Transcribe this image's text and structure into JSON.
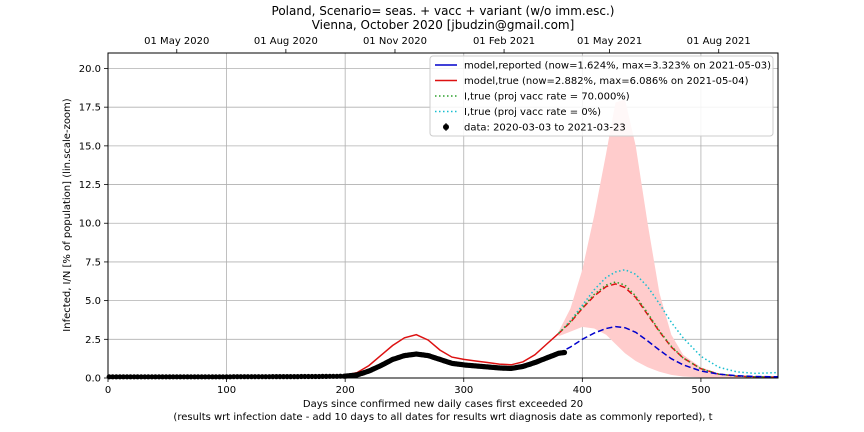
{
  "chart_data": {
    "type": "line",
    "title": "Poland, Scenario= seas. + vacc + variant (w/o imm.esc.)",
    "subtitle": "Vienna, October 2020 [jbudzin@gmail.com]",
    "xlabel": "Days since confirmed new daily cases first exceeded 20",
    "xlabel_note": "(results wrt infection date - add 10 days to all dates for results wrt diagnosis date as commonly reported), t",
    "ylabel": "Infected, I/N [% of population] (lin.scale-zoom)",
    "xlim": [
      0,
      565
    ],
    "ylim": [
      0,
      21
    ],
    "grid": true,
    "legend_position": "top-right",
    "x_ticks": [
      "0",
      "100",
      "200",
      "300",
      "400",
      "500"
    ],
    "x_tick_values": [
      0,
      100,
      200,
      300,
      400,
      500
    ],
    "y_ticks": [
      "0.0",
      "2.5",
      "5.0",
      "7.5",
      "10.0",
      "12.5",
      "15.0",
      "17.5",
      "20.0"
    ],
    "y_tick_values": [
      0,
      2.5,
      5,
      7.5,
      10,
      12.5,
      15,
      17.5,
      20
    ],
    "top_axis_ticks": [
      {
        "label": "01 May 2020",
        "x": 58
      },
      {
        "label": "01 Aug 2020",
        "x": 150
      },
      {
        "label": "01 Nov 2020",
        "x": 242
      },
      {
        "label": "01 Feb 2021",
        "x": 334
      },
      {
        "label": "01 May 2021",
        "x": 423
      },
      {
        "label": "01 Aug 2021",
        "x": 515
      }
    ],
    "legend": [
      {
        "label": "model,reported (now=1.624%, max=3.323% on 2021-05-03)",
        "color": "#0000cc",
        "style": "solid"
      },
      {
        "label": "model,true (now=2.882%, max=6.086% on 2021-05-04)",
        "color": "#dd1111",
        "style": "solid"
      },
      {
        "label": "I,true (proj vacc rate = 70.000%)",
        "color": "#2ca02c",
        "style": "dotted"
      },
      {
        "label": "I,true (proj vacc rate = 0%)",
        "color": "#17becf",
        "style": "dotted"
      },
      {
        "label": "data: 2020-03-03 to 2021-03-23",
        "color": "#000000",
        "style": "marker"
      }
    ],
    "series": [
      {
        "key": "reported",
        "color": "#0000cc",
        "x": [
          0,
          50,
          100,
          150,
          180,
          200,
          210,
          220,
          230,
          240,
          250,
          260,
          270,
          280,
          290,
          300,
          310,
          320,
          330,
          340,
          350,
          360,
          370,
          380
        ],
        "y": [
          0.08,
          0.08,
          0.08,
          0.09,
          0.1,
          0.12,
          0.2,
          0.45,
          0.8,
          1.2,
          1.45,
          1.55,
          1.45,
          1.2,
          0.95,
          0.85,
          0.78,
          0.72,
          0.65,
          0.62,
          0.75,
          1.0,
          1.3,
          1.6
        ]
      },
      {
        "key": "reported_projection",
        "color": "#0000cc",
        "dashed": true,
        "x": [
          380,
          390,
          400,
          410,
          420,
          428,
          436,
          445,
          455,
          465,
          475,
          485,
          500,
          515,
          530,
          545,
          565
        ],
        "y": [
          1.6,
          2.0,
          2.5,
          2.9,
          3.2,
          3.32,
          3.25,
          2.95,
          2.4,
          1.8,
          1.25,
          0.85,
          0.45,
          0.25,
          0.15,
          0.1,
          0.08
        ]
      },
      {
        "key": "true",
        "color": "#dd1111",
        "x": [
          0,
          50,
          100,
          150,
          180,
          200,
          210,
          220,
          230,
          240,
          250,
          260,
          270,
          280,
          290,
          300,
          310,
          320,
          330,
          340,
          350,
          360,
          370,
          380
        ],
        "y": [
          0.1,
          0.1,
          0.1,
          0.12,
          0.14,
          0.18,
          0.35,
          0.8,
          1.45,
          2.1,
          2.6,
          2.8,
          2.45,
          1.8,
          1.35,
          1.2,
          1.1,
          1.0,
          0.9,
          0.85,
          1.05,
          1.5,
          2.2,
          2.88
        ]
      },
      {
        "key": "true_projection",
        "color": "#dd1111",
        "dashed": true,
        "x": [
          380,
          390,
          400,
          410,
          420,
          428,
          436,
          445,
          455,
          465,
          475,
          485,
          500,
          515,
          530,
          545,
          565
        ],
        "y": [
          2.88,
          3.6,
          4.5,
          5.3,
          5.9,
          6.08,
          5.85,
          5.2,
          4.1,
          3.0,
          2.0,
          1.3,
          0.6,
          0.25,
          0.12,
          0.08,
          0.06
        ]
      },
      {
        "key": "vacc70",
        "color": "#2ca02c",
        "dotted": true,
        "x": [
          380,
          390,
          400,
          410,
          420,
          428,
          436,
          445,
          455,
          465,
          475,
          485,
          500,
          515,
          530,
          545,
          565
        ],
        "y": [
          2.88,
          3.65,
          4.55,
          5.4,
          6.0,
          6.2,
          6.0,
          5.3,
          4.2,
          3.05,
          2.05,
          1.3,
          0.6,
          0.25,
          0.12,
          0.08,
          0.06
        ]
      },
      {
        "key": "vacc0",
        "color": "#17becf",
        "dotted": true,
        "x": [
          380,
          390,
          400,
          410,
          420,
          428,
          436,
          445,
          455,
          465,
          475,
          485,
          500,
          515,
          530,
          545,
          565
        ],
        "y": [
          2.88,
          3.7,
          4.7,
          5.7,
          6.5,
          6.85,
          7.0,
          6.7,
          5.9,
          4.8,
          3.6,
          2.6,
          1.4,
          0.7,
          0.4,
          0.3,
          0.35
        ]
      }
    ],
    "uncertainty_band": {
      "color": "#ffcccc",
      "x": [
        380,
        390,
        400,
        410,
        420,
        428,
        436,
        445,
        455,
        465,
        475,
        485,
        500,
        515,
        530,
        545,
        565
      ],
      "upper": [
        3.0,
        4.5,
        7.0,
        10.5,
        14.5,
        17.8,
        18.0,
        15.0,
        10.0,
        5.5,
        2.8,
        1.5,
        0.7,
        0.3,
        0.15,
        0.1,
        0.08
      ],
      "lower": [
        2.7,
        3.0,
        3.3,
        3.2,
        2.8,
        2.2,
        1.6,
        1.1,
        0.7,
        0.4,
        0.2,
        0.1,
        0.04,
        0.02,
        0.01,
        0.01,
        0.01
      ]
    },
    "data_points": {
      "color": "#000000",
      "segments": [
        {
          "x_start": 1,
          "x_end": 199,
          "step": 3
        },
        {
          "x_start": 200,
          "x_end": 385,
          "step": 1
        }
      ]
    }
  }
}
